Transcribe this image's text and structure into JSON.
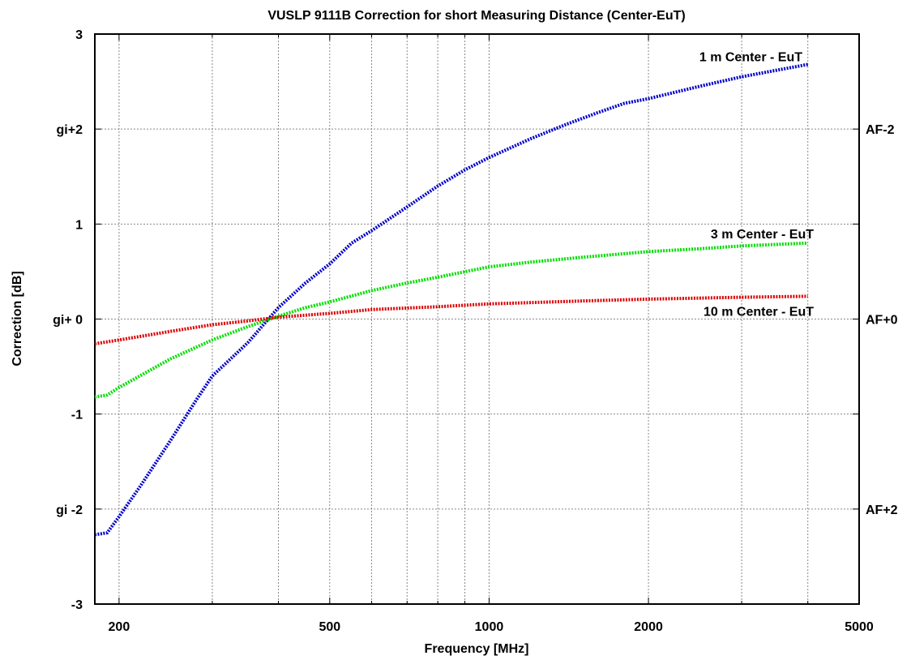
{
  "chart_data": {
    "type": "line",
    "title": "VUSLP 9111B Correction for short Measuring Distance (Center-EuT)",
    "xlabel": "Frequency [MHz]",
    "ylabel": "Correction [dB]",
    "x_scale": "log",
    "xlim": [
      180,
      5000
    ],
    "ylim": [
      -3,
      3
    ],
    "grid": true,
    "x_ticks": [
      {
        "value": 200,
        "label": "200"
      },
      {
        "value": 500,
        "label": "500"
      },
      {
        "value": 1000,
        "label": "1000"
      },
      {
        "value": 2000,
        "label": "2000"
      },
      {
        "value": 5000,
        "label": "5000"
      }
    ],
    "x_minor_gridlines": [
      300,
      400,
      600,
      700,
      800,
      900,
      3000,
      4000
    ],
    "y_ticks_left": [
      {
        "value": 3,
        "label": "3"
      },
      {
        "value": 2,
        "label": "gi+2"
      },
      {
        "value": 1,
        "label": "1"
      },
      {
        "value": 0,
        "label": "gi+ 0"
      },
      {
        "value": -1,
        "label": "-1"
      },
      {
        "value": -2,
        "label": "gi -2"
      },
      {
        "value": -3,
        "label": "-3"
      }
    ],
    "y_ticks_right": [
      {
        "value": 2,
        "label": "AF-2"
      },
      {
        "value": 0,
        "label": "AF+0"
      },
      {
        "value": -2,
        "label": "AF+2"
      }
    ],
    "series": [
      {
        "name": "1 m Center - EuT",
        "color": "#0000cc",
        "x": [
          180,
          190,
          200,
          220,
          250,
          280,
          300,
          350,
          400,
          450,
          500,
          550,
          600,
          700,
          800,
          900,
          1000,
          1200,
          1400,
          1600,
          1800,
          2000,
          2500,
          3000,
          3500,
          4000
        ],
        "y": [
          -2.27,
          -2.25,
          -2.08,
          -1.75,
          -1.28,
          -0.85,
          -0.6,
          -0.25,
          0.12,
          0.38,
          0.58,
          0.8,
          0.93,
          1.18,
          1.4,
          1.57,
          1.7,
          1.9,
          2.05,
          2.17,
          2.27,
          2.32,
          2.45,
          2.55,
          2.62,
          2.68
        ]
      },
      {
        "name": "3 m Center - EuT",
        "color": "#00dd00",
        "x": [
          180,
          190,
          200,
          250,
          300,
          350,
          400,
          450,
          500,
          600,
          700,
          800,
          1000,
          1200,
          1500,
          2000,
          2500,
          3000,
          4000
        ],
        "y": [
          -0.82,
          -0.8,
          -0.72,
          -0.42,
          -0.22,
          -0.08,
          0.03,
          0.12,
          0.18,
          0.3,
          0.38,
          0.44,
          0.55,
          0.6,
          0.65,
          0.71,
          0.74,
          0.77,
          0.8
        ]
      },
      {
        "name": "10 m Center - EuT",
        "color": "#dd0000",
        "x": [
          180,
          200,
          250,
          300,
          350,
          400,
          500,
          600,
          800,
          1000,
          1500,
          2000,
          3000,
          4000
        ],
        "y": [
          -0.26,
          -0.22,
          -0.13,
          -0.06,
          -0.02,
          0.02,
          0.06,
          0.1,
          0.13,
          0.16,
          0.19,
          0.21,
          0.23,
          0.24
        ]
      }
    ]
  }
}
